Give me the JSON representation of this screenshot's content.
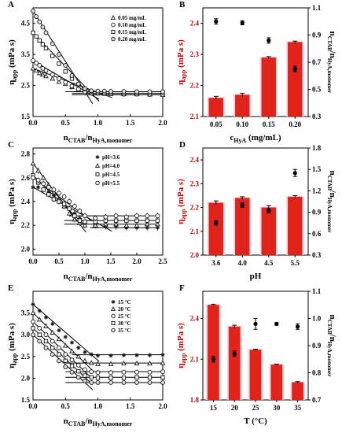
{
  "chart_data": [
    {
      "id": "A",
      "type": "scatter",
      "panel_label": "A",
      "xlabel_main": "n",
      "xlabel_sub1": "CTAB",
      "xlabel_mid": "/n",
      "xlabel_sub2": "HyA,monomer",
      "ylabel_main": "η",
      "ylabel_sub": "app",
      "ylabel_unit": " (mPa s)",
      "xlim": [
        0,
        2.0
      ],
      "ylim": [
        1.5,
        5.0
      ],
      "xticks": [
        "0.0",
        "0.5",
        "1.0",
        "1.5",
        "2.0"
      ],
      "yticks": [
        "1.5",
        "2.5",
        "3.5",
        "4.5"
      ],
      "series": [
        {
          "name": "0.05 mg/mL",
          "marker": "triangle",
          "x": [
            0,
            0.05,
            0.1,
            0.15,
            0.2,
            0.3,
            0.4,
            0.5,
            0.6,
            0.7,
            0.8,
            0.9,
            1.0,
            1.1,
            1.2,
            1.4,
            1.6,
            1.8,
            2.0
          ],
          "y": [
            3.05,
            2.98,
            2.9,
            2.85,
            2.8,
            2.72,
            2.62,
            2.55,
            2.45,
            2.38,
            2.32,
            2.27,
            2.25,
            2.24,
            2.23,
            2.22,
            2.22,
            2.21,
            2.2
          ]
        },
        {
          "name": "0.10 mg/mL",
          "marker": "circle",
          "x": [
            0,
            0.05,
            0.1,
            0.15,
            0.2,
            0.3,
            0.4,
            0.5,
            0.6,
            0.7,
            0.8,
            0.9,
            1.0,
            1.1,
            1.2,
            1.4,
            1.6,
            1.8,
            2.0
          ],
          "y": [
            3.3,
            3.22,
            3.15,
            3.05,
            2.98,
            2.85,
            2.72,
            2.6,
            2.48,
            2.38,
            2.3,
            2.25,
            2.24,
            2.23,
            2.23,
            2.22,
            2.22,
            2.21,
            2.2
          ]
        },
        {
          "name": "0.15 mg/mL",
          "marker": "square",
          "x": [
            0,
            0.05,
            0.1,
            0.15,
            0.2,
            0.3,
            0.4,
            0.5,
            0.6,
            0.7,
            0.8,
            0.9,
            1.0,
            1.1,
            1.2,
            1.4,
            1.6,
            1.8,
            2.0
          ],
          "y": [
            4.2,
            4.08,
            3.95,
            3.82,
            3.7,
            3.45,
            3.2,
            2.95,
            2.72,
            2.52,
            2.38,
            2.3,
            2.28,
            2.27,
            2.27,
            2.26,
            2.26,
            2.25,
            2.25
          ]
        },
        {
          "name": "0.20 mg/mL",
          "marker": "circle-open",
          "x": [
            0,
            0.05,
            0.1,
            0.15,
            0.2,
            0.3,
            0.4,
            0.5,
            0.6,
            0.7,
            0.8,
            0.9,
            1.0,
            1.1,
            1.2,
            1.4,
            1.6,
            1.8,
            2.0
          ],
          "y": [
            4.9,
            4.72,
            4.55,
            4.38,
            4.2,
            3.85,
            3.5,
            3.15,
            2.82,
            2.55,
            2.4,
            2.33,
            2.32,
            2.32,
            2.31,
            2.31,
            2.3,
            2.3,
            2.3
          ]
        }
      ]
    },
    {
      "id": "B",
      "type": "bar",
      "panel_label": "B",
      "xlabel_main": "c",
      "xlabel_sub1": "HyA",
      "xlabel_unit": " (mg/mL)",
      "ylabel_main": "η",
      "ylabel_sub": "app",
      "ylabel_unit": " (mPa  s)",
      "y2label_main": "n",
      "y2label_sub1": "CTAB",
      "y2label_mid": "/n",
      "y2label_sub2": "HyA,monomer",
      "categories": [
        "0.05",
        "0.10",
        "0.15",
        "0.20"
      ],
      "values": [
        2.16,
        2.17,
        2.29,
        2.34
      ],
      "errors": [
        0.005,
        0.005,
        0.003,
        0.003
      ],
      "ylim": [
        2.1,
        2.45
      ],
      "yticks": [
        "2.1",
        "2.2",
        "2.3",
        "2.4"
      ],
      "y2lim": [
        0.3,
        1.1
      ],
      "y2ticks": [
        "0.3",
        "0.5",
        "0.7",
        "0.9",
        "1.1"
      ],
      "points_y2": [
        1.0,
        0.99,
        0.86,
        0.65
      ],
      "points_y2_err": [
        0.02,
        0.015,
        0.02,
        0.02
      ]
    },
    {
      "id": "C",
      "type": "scatter",
      "panel_label": "C",
      "xlabel_main": "n",
      "xlabel_sub1": "CTAB",
      "xlabel_mid": "/n",
      "xlabel_sub2": "HyA,monomer",
      "ylabel_main": "η",
      "ylabel_sub": "app",
      "ylabel_unit": " (mPa s)",
      "xlim": [
        0,
        2.5
      ],
      "ylim": [
        1.95,
        2.85
      ],
      "xticks": [
        "0.0",
        "0.5",
        "1.0",
        "1.5",
        "2.0",
        "2.5"
      ],
      "yticks": [
        "2.0",
        "2.2",
        "2.4",
        "2.6",
        "2.8"
      ],
      "series": [
        {
          "name": "pH=3.6",
          "marker": "star",
          "x": [
            0,
            0.1,
            0.2,
            0.3,
            0.4,
            0.5,
            0.6,
            0.7,
            0.8,
            0.9,
            1.0,
            1.2,
            1.4,
            1.6,
            1.8,
            2.0,
            2.2,
            2.4
          ],
          "y": [
            2.52,
            2.52,
            2.5,
            2.48,
            2.45,
            2.42,
            2.38,
            2.34,
            2.3,
            2.26,
            2.22,
            2.2,
            2.19,
            2.19,
            2.18,
            2.18,
            2.18,
            2.18
          ]
        },
        {
          "name": "pH=4.0",
          "marker": "triangle",
          "x": [
            0,
            0.1,
            0.2,
            0.3,
            0.4,
            0.5,
            0.6,
            0.7,
            0.8,
            0.9,
            1.0,
            1.2,
            1.4,
            1.6,
            1.8,
            2.0,
            2.2,
            2.4
          ],
          "y": [
            2.72,
            2.66,
            2.6,
            2.54,
            2.48,
            2.42,
            2.36,
            2.3,
            2.25,
            2.22,
            2.2,
            2.2,
            2.21,
            2.21,
            2.2,
            2.2,
            2.21,
            2.21
          ]
        },
        {
          "name": "pH=4.5",
          "marker": "square",
          "x": [
            0,
            0.1,
            0.2,
            0.3,
            0.4,
            0.5,
            0.6,
            0.7,
            0.8,
            0.9,
            1.0,
            1.2,
            1.4,
            1.6,
            1.8,
            2.0,
            2.2,
            2.4
          ],
          "y": [
            2.62,
            2.56,
            2.5,
            2.46,
            2.42,
            2.4,
            2.38,
            2.34,
            2.28,
            2.24,
            2.23,
            2.23,
            2.24,
            2.24,
            2.24,
            2.24,
            2.24,
            2.24
          ]
        },
        {
          "name": "pH=5.5",
          "marker": "circle",
          "x": [
            0,
            0.1,
            0.2,
            0.3,
            0.4,
            0.5,
            0.6,
            0.7,
            0.8,
            0.9,
            1.0,
            1.2,
            1.4,
            1.6,
            1.8,
            2.0,
            2.2,
            2.4
          ],
          "y": [
            2.6,
            2.58,
            2.55,
            2.52,
            2.5,
            2.47,
            2.44,
            2.4,
            2.36,
            2.32,
            2.28,
            2.26,
            2.27,
            2.28,
            2.27,
            2.28,
            2.28,
            2.28
          ]
        }
      ]
    },
    {
      "id": "D",
      "type": "bar",
      "panel_label": "D",
      "xlabel_main": "pH",
      "ylabel_main": "η",
      "ylabel_sub": "app",
      "ylabel_unit": " (mPa  s)",
      "y2label_main": "n",
      "y2label_sub1": "CTAB",
      "y2label_mid": "/n",
      "y2label_sub2": "HyA,monomer",
      "categories": [
        "3.6",
        "4.0",
        "4.5",
        "5.5"
      ],
      "values": [
        2.22,
        2.24,
        2.2,
        2.245
      ],
      "errors": [
        0.008,
        0.005,
        0.008,
        0.005
      ],
      "ylim": [
        2.0,
        2.45
      ],
      "yticks": [
        "2.0",
        "2.1",
        "2.2",
        "2.3",
        "2.4"
      ],
      "y2lim": [
        0.3,
        1.8
      ],
      "y2ticks": [
        "0.3",
        "0.6",
        "0.9",
        "1.2",
        "1.5",
        "1.8"
      ],
      "points_y2": [
        0.75,
        1.0,
        0.92,
        1.45
      ],
      "points_y2_err": [
        0.03,
        0.03,
        0.03,
        0.05
      ]
    },
    {
      "id": "E",
      "type": "scatter",
      "panel_label": "E",
      "xlabel_main": "n",
      "xlabel_sub1": "CTAB",
      "xlabel_mid": "/n",
      "xlabel_sub2": "HyA,monomer",
      "ylabel_main": "η",
      "ylabel_sub": "app",
      "ylabel_unit": " (mPa s)",
      "xlim": [
        0,
        2.0
      ],
      "ylim": [
        1.5,
        4.0
      ],
      "xticks": [
        "0.0",
        "0.5",
        "1.0",
        "1.5",
        "2.0"
      ],
      "yticks": [
        "1.5",
        "2.0",
        "2.5",
        "3.0",
        "3.5"
      ],
      "series": [
        {
          "name": "15 °C",
          "marker": "star",
          "x": [
            0,
            0.1,
            0.2,
            0.3,
            0.4,
            0.5,
            0.6,
            0.7,
            0.8,
            0.9,
            1.0,
            1.2,
            1.4,
            1.6,
            1.8,
            2.0
          ],
          "y": [
            3.7,
            3.55,
            3.4,
            3.25,
            3.1,
            2.95,
            2.82,
            2.7,
            2.6,
            2.55,
            2.52,
            2.52,
            2.53,
            2.53,
            2.53,
            2.54
          ]
        },
        {
          "name": "20 °C",
          "marker": "triangle",
          "x": [
            0,
            0.1,
            0.2,
            0.3,
            0.4,
            0.5,
            0.6,
            0.7,
            0.8,
            0.9,
            1.0,
            1.2,
            1.4,
            1.6,
            1.8,
            2.0
          ],
          "y": [
            3.5,
            3.35,
            3.2,
            3.05,
            2.9,
            2.75,
            2.62,
            2.5,
            2.4,
            2.35,
            2.33,
            2.33,
            2.34,
            2.34,
            2.34,
            2.35
          ]
        },
        {
          "name": "25 °C",
          "marker": "circle",
          "x": [
            0,
            0.1,
            0.2,
            0.3,
            0.4,
            0.5,
            0.6,
            0.7,
            0.8,
            0.9,
            1.0,
            1.2,
            1.4,
            1.6,
            1.8,
            2.0
          ],
          "y": [
            3.3,
            3.15,
            3.0,
            2.85,
            2.7,
            2.55,
            2.42,
            2.3,
            2.2,
            2.15,
            2.13,
            2.13,
            2.14,
            2.14,
            2.14,
            2.15
          ]
        },
        {
          "name": "30 °C",
          "marker": "square",
          "x": [
            0,
            0.1,
            0.2,
            0.3,
            0.4,
            0.5,
            0.6,
            0.7,
            0.8,
            0.9,
            1.0,
            1.2,
            1.4,
            1.6,
            1.8,
            2.0
          ],
          "y": [
            3.15,
            3.0,
            2.85,
            2.7,
            2.55,
            2.4,
            2.28,
            2.16,
            2.06,
            2.02,
            2.01,
            2.01,
            2.01,
            2.02,
            2.02,
            2.02
          ]
        },
        {
          "name": "35 °C",
          "marker": "circle-open",
          "x": [
            0,
            0.1,
            0.2,
            0.3,
            0.4,
            0.5,
            0.6,
            0.7,
            0.8,
            0.9,
            1.0,
            1.2,
            1.4,
            1.6,
            1.8,
            2.0
          ],
          "y": [
            3.0,
            2.85,
            2.7,
            2.55,
            2.4,
            2.26,
            2.14,
            2.02,
            1.94,
            1.9,
            1.9,
            1.9,
            1.9,
            1.9,
            1.9,
            1.9
          ]
        }
      ]
    },
    {
      "id": "F",
      "type": "bar",
      "panel_label": "F",
      "xlabel_main": "T (°C)",
      "ylabel_main": "η",
      "ylabel_sub": "app",
      "ylabel_unit": " (mPa  s)",
      "y2label_main": "n",
      "y2label_sub1": "CTAB",
      "y2label_mid": "/n",
      "y2label_sub2": "HyA,monomer",
      "categories": [
        "15",
        "20",
        "25",
        "30",
        "35"
      ],
      "values": [
        2.5,
        2.34,
        2.17,
        2.06,
        1.93
      ],
      "errors": [
        0.005,
        0.01,
        0.004,
        0.004,
        0.005
      ],
      "ylim": [
        1.8,
        2.6
      ],
      "yticks": [
        "1.8",
        "2.1",
        "2.4"
      ],
      "y2lim": [
        0.7,
        1.1
      ],
      "y2ticks": [
        "0.7",
        "0.8",
        "0.9",
        "1.0",
        "1.1"
      ],
      "points_y2": [
        0.85,
        0.87,
        0.98,
        0.98,
        0.97
      ],
      "points_y2_err": [
        0.01,
        0.01,
        0.02,
        0.005,
        0.01
      ]
    }
  ]
}
